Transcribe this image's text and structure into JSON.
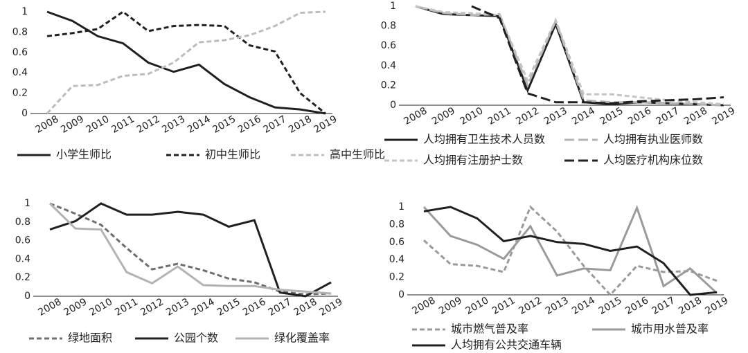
{
  "chart_data": [
    {
      "type": "line",
      "categories": [
        "2008",
        "2009",
        "2010",
        "2011",
        "2012",
        "2013",
        "2014",
        "2015",
        "2016",
        "2017",
        "2018",
        "2019"
      ],
      "ylim": [
        0,
        1
      ],
      "yticks": [
        0,
        0.2,
        0.4,
        0.6,
        0.8,
        1
      ],
      "series": [
        {
          "name": "小学生师比",
          "color": "#231f20",
          "dash": "solid",
          "values": [
            1,
            0.91,
            0.76,
            0.69,
            0.5,
            0.41,
            0.48,
            0.29,
            0.16,
            0.06,
            0.04,
            0
          ]
        },
        {
          "name": "初中生师比",
          "color": "#231f20",
          "dash": "dashed",
          "values": [
            0.76,
            0.79,
            0.83,
            1,
            0.81,
            0.86,
            0.87,
            0.86,
            0.67,
            0.61,
            0.2,
            0
          ]
        },
        {
          "name": "高中生师比",
          "color": "#bcbcbc",
          "dash": "dashed",
          "values": [
            0,
            0.27,
            0.28,
            0.37,
            0.39,
            0.5,
            0.7,
            0.72,
            0.77,
            0.86,
            0.99,
            1
          ]
        }
      ]
    },
    {
      "type": "line",
      "categories": [
        "2008",
        "2009",
        "2010",
        "2011",
        "2012",
        "2013",
        "2014",
        "2015",
        "2016",
        "2017",
        "2018",
        "2019"
      ],
      "ylim": [
        0,
        1
      ],
      "yticks": [
        0,
        0.2,
        0.4,
        0.6,
        0.8,
        1
      ],
      "series": [
        {
          "name": "人均拥有卫生技术人员数",
          "color": "#231f20",
          "dash": "solid",
          "values": [
            1,
            0.92,
            0.91,
            0.9,
            0.15,
            0.82,
            0.03,
            0.01,
            0.03,
            0.02,
            0.01,
            0
          ]
        },
        {
          "name": "人均拥有执业医师数",
          "color": "#b3b3b3",
          "dash": "long-dash",
          "values": [
            1,
            0.93,
            0.91,
            0.92,
            0.2,
            0.85,
            0.05,
            0.03,
            0.03,
            0.02,
            0.01,
            0
          ]
        },
        {
          "name": "人均拥有注册护士数",
          "color": "#c4c4c4",
          "dash": "dashed",
          "values": [
            1,
            0.94,
            0.93,
            0.91,
            0.25,
            0.86,
            0.11,
            0.11,
            0.08,
            0.05,
            0.03,
            0.01
          ]
        },
        {
          "name": "人均医疗机构床位数",
          "color": "#231f20",
          "dash": "long-dash",
          "values": [
            null,
            null,
            1,
            0.88,
            0.12,
            0.03,
            0.03,
            0.02,
            0.04,
            0.05,
            0.06,
            0.08
          ]
        }
      ]
    },
    {
      "type": "line",
      "categories": [
        "2008",
        "2009",
        "2010",
        "2011",
        "2012",
        "2013",
        "2014",
        "2015",
        "2016",
        "2017",
        "2018",
        "2019"
      ],
      "ylim": [
        0,
        1
      ],
      "yticks": [
        0,
        0.2,
        0.4,
        0.6,
        0.8,
        1
      ],
      "series": [
        {
          "name": "绿地面积",
          "color": "#6d6e71",
          "dash": "dashed",
          "values": [
            1,
            0.89,
            0.77,
            0.52,
            0.29,
            0.35,
            0.28,
            0.19,
            0.15,
            0.05,
            0.02,
            0.03
          ]
        },
        {
          "name": "公园个数",
          "color": "#231f20",
          "dash": "solid",
          "values": [
            0.72,
            0.81,
            1,
            0.88,
            0.88,
            0.91,
            0.88,
            0.75,
            0.82,
            0.04,
            0,
            0.15
          ]
        },
        {
          "name": "绿化覆盖率",
          "color": "#b3b3b3",
          "dash": "solid",
          "values": [
            1,
            0.73,
            0.72,
            0.26,
            0.14,
            0.32,
            0.12,
            0.11,
            0.11,
            0.07,
            0.05,
            0.03
          ]
        }
      ]
    },
    {
      "type": "line",
      "categories": [
        "2008",
        "2009",
        "2010",
        "2011",
        "2012",
        "2013",
        "2014",
        "2015",
        "2016",
        "2017",
        "2018",
        "2019"
      ],
      "ylim": [
        0,
        1
      ],
      "yticks": [
        0,
        0.2,
        0.4,
        0.6,
        0.8,
        1
      ],
      "series": [
        {
          "name": "城市燃气普及率",
          "color": "#9a9a9a",
          "dash": "dashed",
          "values": [
            0.62,
            0.35,
            0.33,
            0.26,
            1,
            0.72,
            0.33,
            0,
            0.33,
            0.26,
            0.27,
            0.16
          ]
        },
        {
          "name": "城市用水普及率",
          "color": "#9a9a9a",
          "dash": "solid",
          "values": [
            1,
            0.67,
            0.57,
            0.41,
            0.78,
            0.22,
            0.3,
            0.28,
            0.99,
            0.1,
            0.3,
            0.02
          ]
        },
        {
          "name": "人均拥有公共交通车辆",
          "color": "#231f20",
          "dash": "solid",
          "values": [
            0.95,
            1,
            0.87,
            0.61,
            0.67,
            0.6,
            0.58,
            0.5,
            0.55,
            0.36,
            0,
            0.03
          ]
        }
      ]
    }
  ]
}
